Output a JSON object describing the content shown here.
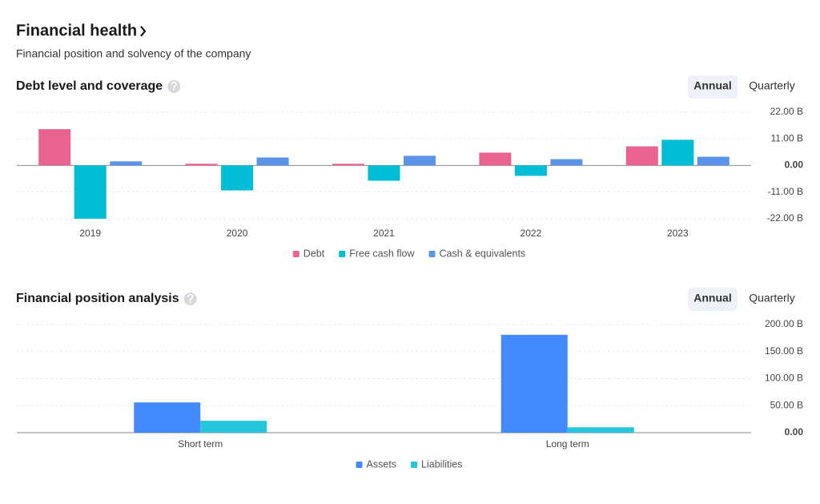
{
  "header": {
    "title": "Financial health",
    "subtitle": "Financial position and solvency of the company"
  },
  "chart_data": [
    {
      "type": "bar",
      "title": "Debt level and coverage",
      "period_options": [
        "Annual",
        "Quarterly"
      ],
      "selected_option": 0,
      "categories": [
        "2019",
        "2020",
        "2021",
        "2022",
        "2023"
      ],
      "series": [
        {
          "name": "Debt",
          "color": "#e8638f",
          "values": [
            15,
            0.7,
            0.7,
            5.3,
            7.9
          ]
        },
        {
          "name": "Free cash flow",
          "color": "#00bcd4",
          "values": [
            -22,
            -10.3,
            -6.3,
            -4.3,
            10.6
          ]
        },
        {
          "name": "Cash & equivalents",
          "color": "#5b93e8",
          "values": [
            1.7,
            3.3,
            4,
            2.6,
            3.6
          ]
        }
      ],
      "ylim": [
        -22,
        22
      ],
      "yticks": [
        {
          "value": 22,
          "label": "22.00 B"
        },
        {
          "value": 11,
          "label": "11.00 B"
        },
        {
          "value": 0,
          "label": "0.00"
        },
        {
          "value": -11,
          "label": "-11.00 B"
        },
        {
          "value": -22,
          "label": "-22.00 B"
        }
      ],
      "grid": true,
      "legend": "bottom"
    },
    {
      "type": "bar",
      "title": "Financial position analysis",
      "period_options": [
        "Annual",
        "Quarterly"
      ],
      "selected_option": 0,
      "categories": [
        "Short term",
        "Long term"
      ],
      "series": [
        {
          "name": "Assets",
          "color": "#448aff",
          "values": [
            56,
            181
          ]
        },
        {
          "name": "Liabilities",
          "color": "#26c6da",
          "values": [
            22,
            10
          ]
        }
      ],
      "ylim": [
        0,
        200
      ],
      "yticks": [
        {
          "value": 200,
          "label": "200.00 B"
        },
        {
          "value": 150,
          "label": "150.00 B"
        },
        {
          "value": 100,
          "label": "100.00 B"
        },
        {
          "value": 50,
          "label": "50.00 B"
        },
        {
          "value": 0,
          "label": "0.00"
        }
      ],
      "grid": true,
      "legend": "bottom"
    }
  ]
}
